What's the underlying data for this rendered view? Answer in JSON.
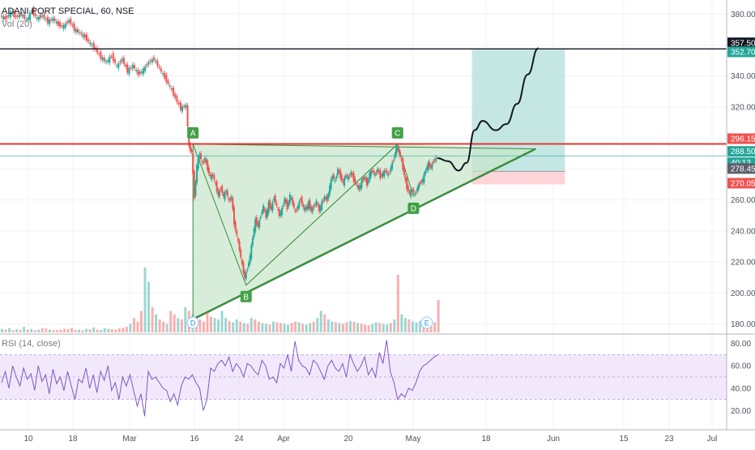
{
  "header": {
    "title": "ADANI PORT SPECIAL, 60, NSE",
    "volume_label": "Vol (20)",
    "rsi_label": "RSI (14, close)"
  },
  "colors": {
    "up": "#26a69a",
    "down": "#ef5350",
    "rsi_line": "#7e57c2",
    "rsi_band": "#e9d9f9",
    "triangle_fill": "#c8e6c9",
    "triangle_edge": "#388e3c",
    "target_fill": "#b2dfdb",
    "stop_fill": "#ffcdd2",
    "resistance": "#e53935",
    "grid": "#f0f3fa",
    "marker_green": "#43a047"
  },
  "chart_data": {
    "type": "candlestick",
    "title": "ADANI PORT SPECIAL, 60, NSE",
    "price_axis": {
      "ticks": [
        "380.00",
        "360.00",
        "340.00",
        "320.00",
        "300.00",
        "280.00",
        "260.00",
        "240.00",
        "220.00",
        "200.00",
        "180.00"
      ],
      "range": [
        174,
        388
      ]
    },
    "time_axis": {
      "ticks": [
        "10",
        "18",
        "Mar",
        "16",
        "24",
        "Apr",
        "20",
        "May",
        "18",
        "Jun",
        "15",
        "23",
        "Jul"
      ]
    },
    "price_tags": [
      {
        "label": "357.50",
        "value": 357.5,
        "style": "black"
      },
      {
        "label": "352.70",
        "value": 352.7,
        "style": "teal"
      },
      {
        "label": "296.15",
        "value": 296.15,
        "style": "red"
      },
      {
        "label": "288.50",
        "value": 288.5,
        "style": "teal"
      },
      {
        "label": "40:13",
        "value": 283.6,
        "style": "teal"
      },
      {
        "label": "278.45",
        "value": 278.45,
        "style": "gray"
      },
      {
        "label": "270.05",
        "value": 270.05,
        "style": "red"
      }
    ],
    "horizontal_levels": [
      {
        "value": 357.5,
        "color": "#131722"
      },
      {
        "value": 296.15,
        "color": "#e53935"
      }
    ],
    "price_path": [
      [
        0,
        379
      ],
      [
        2,
        377
      ],
      [
        4,
        381
      ],
      [
        6,
        378
      ],
      [
        8,
        380
      ],
      [
        10,
        376
      ],
      [
        12,
        382
      ],
      [
        14,
        377
      ],
      [
        16,
        379
      ],
      [
        18,
        375
      ],
      [
        20,
        377
      ],
      [
        22,
        373
      ],
      [
        24,
        372
      ],
      [
        26,
        376
      ],
      [
        28,
        370
      ],
      [
        30,
        368
      ],
      [
        32,
        365
      ],
      [
        34,
        361
      ],
      [
        36,
        357
      ],
      [
        38,
        352
      ],
      [
        40,
        349
      ],
      [
        42,
        353
      ],
      [
        44,
        346
      ],
      [
        46,
        351
      ],
      [
        48,
        343
      ],
      [
        50,
        347
      ],
      [
        52,
        341
      ],
      [
        54,
        344
      ],
      [
        56,
        349
      ],
      [
        58,
        351
      ],
      [
        60,
        345
      ],
      [
        62,
        339
      ],
      [
        64,
        333
      ],
      [
        66,
        326
      ],
      [
        68,
        319
      ],
      [
        70,
        321
      ],
      [
        71,
        294
      ],
      [
        72,
        291
      ],
      [
        73,
        262
      ],
      [
        74,
        282
      ],
      [
        75,
        290
      ],
      [
        76,
        283
      ],
      [
        77,
        287
      ],
      [
        78,
        280
      ],
      [
        79,
        275
      ],
      [
        80,
        276
      ],
      [
        81,
        270
      ],
      [
        82,
        263
      ],
      [
        83,
        268
      ],
      [
        84,
        262
      ],
      [
        85,
        266
      ],
      [
        86,
        259
      ],
      [
        87,
        262
      ],
      [
        88,
        245
      ],
      [
        89,
        237
      ],
      [
        90,
        228
      ],
      [
        91,
        218
      ],
      [
        92,
        210
      ],
      [
        93,
        216
      ],
      [
        94,
        224
      ],
      [
        95,
        236
      ],
      [
        96,
        247
      ],
      [
        97,
        243
      ],
      [
        98,
        250
      ],
      [
        99,
        256
      ],
      [
        100,
        249
      ],
      [
        101,
        258
      ],
      [
        102,
        254
      ],
      [
        103,
        262
      ],
      [
        104,
        256
      ],
      [
        105,
        250
      ],
      [
        106,
        254
      ],
      [
        107,
        261
      ],
      [
        108,
        255
      ],
      [
        109,
        263
      ],
      [
        110,
        258
      ],
      [
        111,
        252
      ],
      [
        112,
        256
      ],
      [
        113,
        261
      ],
      [
        114,
        255
      ],
      [
        115,
        254
      ],
      [
        116,
        258
      ],
      [
        117,
        253
      ],
      [
        118,
        256
      ],
      [
        119,
        259
      ],
      [
        120,
        253
      ],
      [
        121,
        258
      ],
      [
        122,
        262
      ],
      [
        123,
        260
      ],
      [
        124,
        269
      ],
      [
        125,
        276
      ],
      [
        126,
        272
      ],
      [
        127,
        280
      ],
      [
        128,
        275
      ],
      [
        129,
        271
      ],
      [
        130,
        276
      ],
      [
        131,
        274
      ],
      [
        132,
        278
      ],
      [
        133,
        273
      ],
      [
        134,
        270
      ],
      [
        135,
        267
      ],
      [
        136,
        272
      ],
      [
        137,
        275
      ],
      [
        138,
        270
      ],
      [
        139,
        277
      ],
      [
        140,
        279
      ],
      [
        141,
        276
      ],
      [
        142,
        280
      ],
      [
        143,
        275
      ],
      [
        144,
        277
      ],
      [
        145,
        279
      ],
      [
        146,
        276
      ],
      [
        147,
        281
      ],
      [
        148,
        286
      ],
      [
        149,
        294
      ],
      [
        150,
        291
      ],
      [
        151,
        285
      ],
      [
        152,
        276
      ],
      [
        153,
        268
      ],
      [
        154,
        264
      ],
      [
        155,
        267
      ],
      [
        156,
        263
      ],
      [
        157,
        268
      ],
      [
        158,
        271
      ],
      [
        159,
        273
      ],
      [
        160,
        279
      ],
      [
        161,
        283
      ],
      [
        162,
        281
      ],
      [
        163,
        285
      ],
      [
        164,
        287
      ]
    ],
    "volume_axis_max": 900,
    "volume": [
      50,
      40,
      60,
      30,
      45,
      35,
      80,
      40,
      50,
      30,
      40,
      60,
      55,
      40,
      30,
      35,
      40,
      50,
      45,
      60,
      35,
      40,
      30,
      50,
      45,
      70,
      40,
      35,
      60,
      50,
      45,
      40,
      55,
      65,
      80,
      120,
      200,
      150,
      300,
      900,
      700,
      350,
      250,
      180,
      150,
      120,
      300,
      250,
      200,
      180,
      350,
      300,
      250,
      200,
      180,
      150,
      280,
      220,
      200,
      180,
      300,
      200,
      160,
      140,
      180,
      150,
      130,
      120,
      200,
      180,
      150,
      130,
      120,
      110,
      150,
      140,
      130,
      120,
      110,
      130,
      150,
      140,
      120,
      110,
      130,
      150,
      200,
      300,
      250,
      180,
      150,
      140,
      130,
      120,
      140,
      160,
      150,
      130,
      120,
      110,
      100,
      120,
      140,
      130,
      120,
      110,
      130,
      180,
      800,
      250,
      200,
      180,
      150,
      140,
      160,
      200,
      180,
      160,
      140,
      450
    ],
    "rsi_axis": {
      "ticks": [
        "80.00",
        "60.00",
        "40.00",
        "20.00"
      ],
      "overbought": 70,
      "oversold": 30
    },
    "rsi": [
      45,
      55,
      40,
      60,
      50,
      42,
      58,
      48,
      53,
      38,
      60,
      46,
      52,
      35,
      57,
      44,
      50,
      38,
      55,
      42,
      30,
      48,
      45,
      58,
      40,
      52,
      36,
      55,
      47,
      60,
      38,
      45,
      30,
      50,
      42,
      52,
      38,
      24,
      35,
      15,
      55,
      48,
      50,
      45,
      40,
      38,
      28,
      35,
      25,
      42,
      50,
      48,
      52,
      45,
      40,
      20,
      30,
      58,
      55,
      62,
      65,
      60,
      68,
      55,
      62,
      58,
      50,
      62,
      60,
      55,
      52,
      65,
      60,
      48,
      50,
      45,
      62,
      58,
      70,
      55,
      82,
      65,
      60,
      58,
      52,
      65,
      62,
      55,
      48,
      60,
      65,
      58,
      55,
      62,
      50,
      70,
      62,
      55,
      60,
      68,
      52,
      58,
      50,
      72,
      62,
      83,
      55,
      45,
      30,
      35,
      32,
      40,
      38,
      45,
      55,
      60,
      62,
      65,
      68,
      70
    ],
    "points": [
      {
        "label": "A",
        "x": 72,
        "y": 296
      },
      {
        "label": "B",
        "x": 92,
        "y": 205
      },
      {
        "label": "C",
        "x": 149,
        "y": 296
      },
      {
        "label": "D",
        "x": 155,
        "y": 262
      }
    ],
    "event_markers": [
      {
        "label": "D",
        "x": 72
      },
      {
        "label": "E",
        "x": 160
      }
    ],
    "projection": [
      [
        164,
        287
      ],
      [
        168,
        285
      ],
      [
        172,
        279
      ],
      [
        175,
        284
      ],
      [
        178,
        305
      ],
      [
        181,
        311
      ],
      [
        186,
        305
      ],
      [
        190,
        309
      ],
      [
        194,
        322
      ],
      [
        198,
        341
      ],
      [
        202,
        358
      ]
    ],
    "target_zone": {
      "x1": 177,
      "x2": 212,
      "top": 357.5,
      "entry": 278.45
    },
    "stop_zone": {
      "x1": 177,
      "x2": 212,
      "top": 278.45,
      "bottom": 270.05
    }
  }
}
